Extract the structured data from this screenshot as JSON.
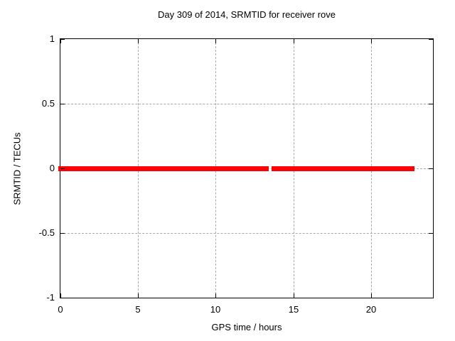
{
  "chart_data": {
    "type": "line",
    "title": "Day 309 of 2014, SRMTID for receiver rove",
    "xlabel": "GPS time / hours",
    "ylabel": "SRMTID / TECUs",
    "xlim": [
      0,
      24
    ],
    "ylim": [
      -1,
      1
    ],
    "xticks": [
      0,
      5,
      10,
      15,
      20
    ],
    "xtick_labels": [
      "0",
      "5",
      "10",
      "15",
      "20"
    ],
    "yticks": [
      1,
      0.5,
      0,
      -0.5,
      -1
    ],
    "ytick_labels": [
      "1",
      "0.5",
      "0",
      "-0.5",
      "-1"
    ],
    "grid": "dashed, at interior ticks only",
    "legend": "none",
    "series": [
      {
        "name": "SRMTID",
        "color": "#ff0000",
        "style": "thick horizontal band of points at y = 0",
        "segments": [
          {
            "x_start": 0.0,
            "x_end": 13.4,
            "y": 0.0
          },
          {
            "x_start": 13.6,
            "x_end": 22.8,
            "y": 0.0
          }
        ]
      }
    ]
  },
  "colors": {
    "series": "#ff0000",
    "grid": "#a9a9a9",
    "frame": "#000000",
    "background": "#ffffff",
    "text": "#000000"
  }
}
